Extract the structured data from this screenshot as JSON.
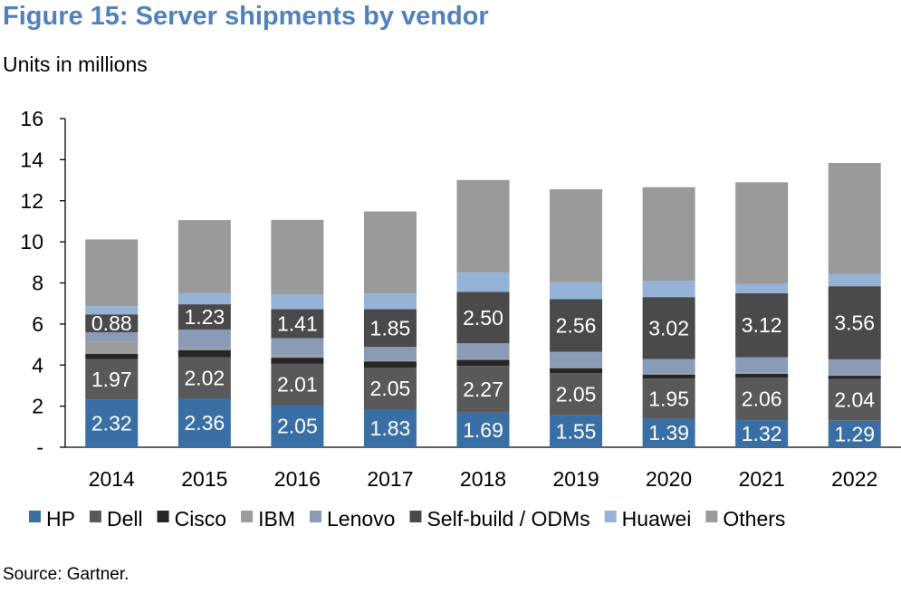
{
  "title": "Figure 15: Server shipments by vendor",
  "subtitle": "Units in millions",
  "source": "Source: Gartner.",
  "chart_data": {
    "type": "bar",
    "stacked": true,
    "categories": [
      "2014",
      "2015",
      "2016",
      "2017",
      "2018",
      "2019",
      "2020",
      "2021",
      "2022"
    ],
    "ylim": [
      0,
      16
    ],
    "yticks": [
      0,
      2,
      4,
      6,
      8,
      10,
      12,
      14,
      16
    ],
    "ytick_labels": [
      "-",
      "2",
      "4",
      "6",
      "8",
      "10",
      "12",
      "14",
      "16"
    ],
    "grid": false,
    "legend_position": "bottom",
    "series": [
      {
        "name": "HP",
        "color": "#3a6fa6",
        "values": [
          2.32,
          2.36,
          2.05,
          1.83,
          1.69,
          1.55,
          1.39,
          1.32,
          1.29
        ],
        "labels": true
      },
      {
        "name": "Dell",
        "color": "#595959",
        "values": [
          1.97,
          2.02,
          2.01,
          2.05,
          2.27,
          2.05,
          1.95,
          2.06,
          2.04
        ],
        "labels": true
      },
      {
        "name": "Cisco",
        "color": "#262626",
        "values": [
          0.25,
          0.35,
          0.3,
          0.3,
          0.3,
          0.25,
          0.2,
          0.2,
          0.15
        ],
        "labels": false
      },
      {
        "name": "IBM",
        "color": "#9c9c9c",
        "values": [
          0.6,
          0.1,
          0.1,
          0.05,
          0.05,
          0.05,
          0.05,
          0.05,
          0.05
        ],
        "labels": false
      },
      {
        "name": "Lenovo",
        "color": "#8a9bb8",
        "values": [
          0.45,
          0.9,
          0.85,
          0.65,
          0.75,
          0.75,
          0.7,
          0.75,
          0.75
        ],
        "labels": false
      },
      {
        "name": "Self-build / ODMs",
        "color": "#4a4a4a",
        "values": [
          0.88,
          1.23,
          1.41,
          1.85,
          2.5,
          2.56,
          3.02,
          3.12,
          3.56
        ],
        "labels": true
      },
      {
        "name": "Huawei",
        "color": "#95b3d7",
        "values": [
          0.4,
          0.55,
          0.7,
          0.75,
          0.95,
          0.8,
          0.8,
          0.45,
          0.6
        ],
        "labels": false
      },
      {
        "name": "Others",
        "color": "#9a9a9a",
        "values": [
          3.25,
          3.55,
          3.65,
          4.0,
          4.5,
          4.55,
          4.55,
          4.95,
          5.4
        ],
        "labels": false
      }
    ]
  }
}
